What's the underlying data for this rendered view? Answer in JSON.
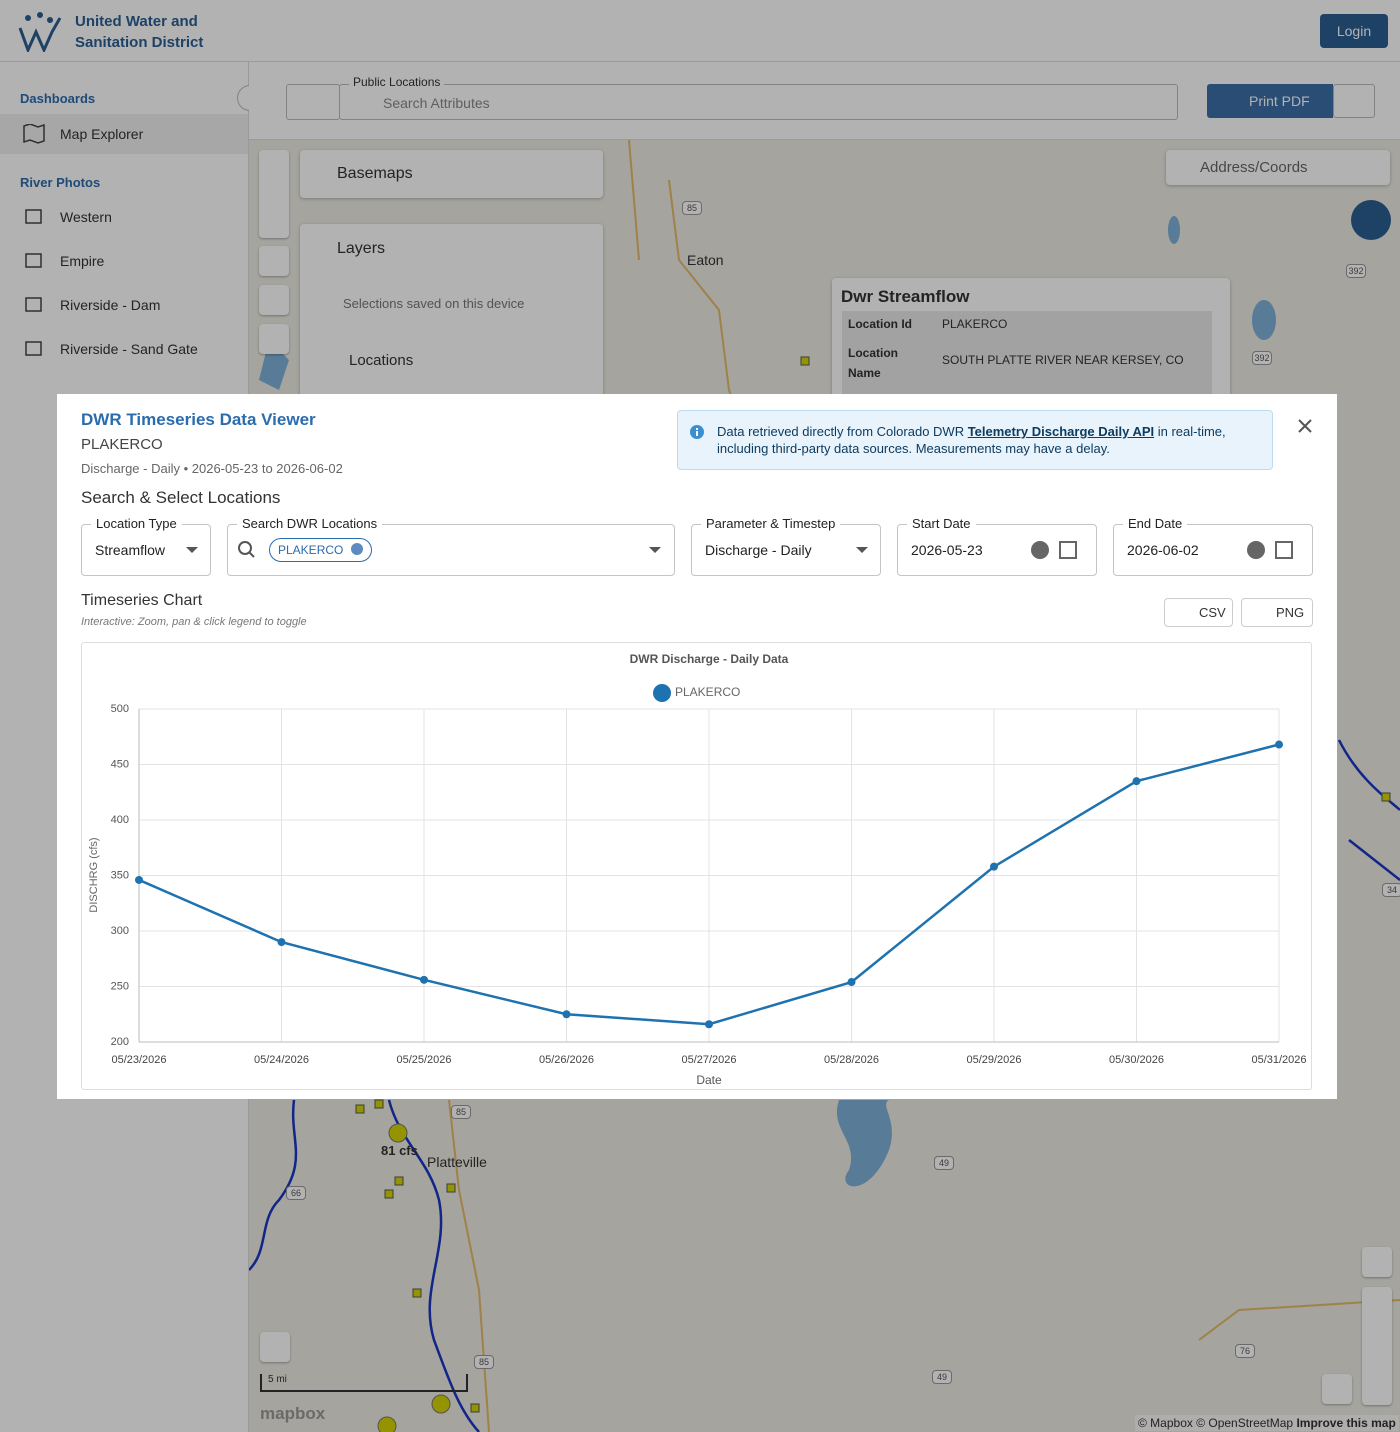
{
  "header": {
    "title_line1": "United Water and",
    "title_line2": "Sanitation District",
    "login": "Login"
  },
  "sidebar": {
    "sections": [
      {
        "title": "Dashboards",
        "items": [
          "Map Explorer"
        ]
      },
      {
        "title": "River Photos",
        "items": [
          "Western",
          "Empire",
          "Riverside - Dam",
          "Riverside - Sand Gate"
        ]
      }
    ]
  },
  "toolbar": {
    "search_label": "Public Locations",
    "search_placeholder": "Search Attributes",
    "print": "Print PDF",
    "address_placeholder": "Address/Coords"
  },
  "map_panel": {
    "basemaps": "Basemaps",
    "layers": "Layers",
    "saved_note": "Selections saved on this device",
    "locations": "Locations"
  },
  "popup": {
    "title": "Dwr Streamflow",
    "rows": [
      {
        "label": "Location Id",
        "value": "PLAKERCO"
      },
      {
        "label": "Location Name",
        "value": "SOUTH PLATTE RIVER NEAR KERSEY, CO"
      }
    ]
  },
  "map_labels": {
    "places": [
      "Eaton",
      "Platteville"
    ],
    "flow": "81 cfs",
    "roads": [
      "85",
      "392",
      "392",
      "85",
      "66",
      "49",
      "85",
      "49",
      "76",
      "34"
    ],
    "scale": "5 mi",
    "logo": "mapbox",
    "attribution": "© Mapbox © OpenStreetMap",
    "improve": "Improve this map"
  },
  "modal": {
    "title": "DWR Timeseries Data Viewer",
    "location": "PLAKERCO",
    "subtitle": "Discharge - Daily • 2026-05-23 to 2026-06-02",
    "info_before": "Data retrieved directly from Colorado DWR ",
    "info_link": "Telemetry Discharge Daily API",
    "info_after": " in real-time, including third-party data sources. Measurements may have a delay.",
    "section": "Search & Select Locations",
    "fields": [
      {
        "label": "Location Type",
        "value": "Streamflow"
      },
      {
        "label": "Search DWR Locations",
        "value": "PLAKERCO"
      },
      {
        "label": "Parameter & Timestep",
        "value": "Discharge - Daily"
      },
      {
        "label": "Start Date",
        "value": "2026-05-23"
      },
      {
        "label": "End Date",
        "value": "2026-06-02"
      }
    ],
    "chart_heading": "Timeseries Chart",
    "chart_hint": "Interactive: Zoom, pan & click legend to toggle",
    "csv": "CSV",
    "png": "PNG"
  },
  "chart_data": {
    "type": "line",
    "title": "DWR Discharge - Daily Data",
    "x_label": "Date",
    "y_label": "DISCHRG (cfs)",
    "categories": [
      "05/23/2026",
      "05/24/2026",
      "05/25/2026",
      "05/26/2026",
      "05/27/2026",
      "05/28/2026",
      "05/29/2026",
      "05/30/2026",
      "05/31/2026"
    ],
    "series": [
      {
        "name": "PLAKERCO",
        "color": "#1f72b0",
        "values": [
          346,
          290,
          256,
          225,
          216,
          254,
          358,
          435,
          468
        ]
      }
    ],
    "ylim": [
      200,
      500
    ],
    "yticks": [
      200,
      250,
      300,
      350,
      400,
      450,
      500
    ],
    "grid": true,
    "legend": "top"
  }
}
